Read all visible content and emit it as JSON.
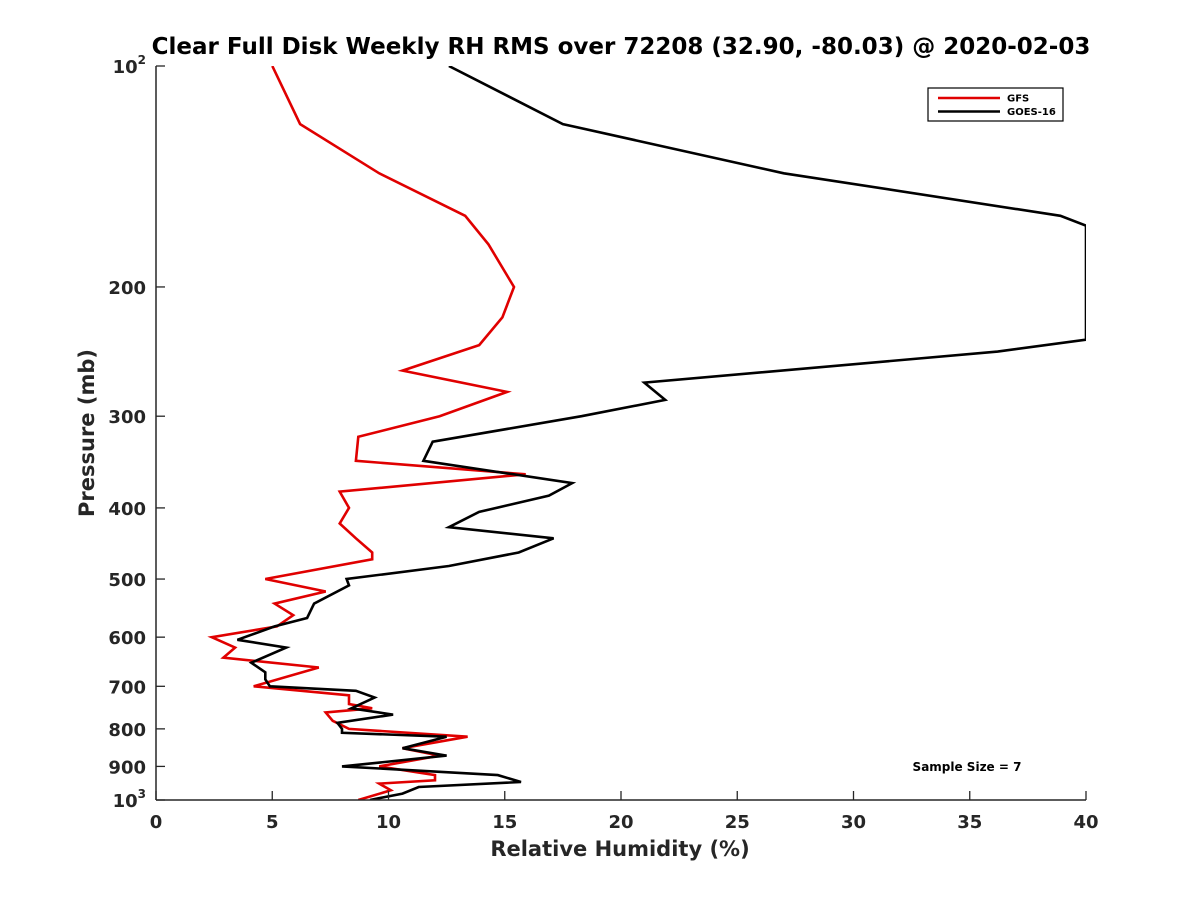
{
  "chart_data": {
    "type": "line",
    "title": "Clear Full Disk Weekly RH RMS over 72208 (32.90, -80.03) @ 2020-02-03",
    "xlabel": "Relative Humidity (%)",
    "ylabel": "Pressure (mb)",
    "xlim": [
      0,
      40
    ],
    "ylim": [
      100,
      1000
    ],
    "y_scale": "log",
    "y_reversed": true,
    "grid": false,
    "legend_position": "top-right",
    "x_ticks": [
      0,
      5,
      10,
      15,
      20,
      25,
      30,
      35,
      40
    ],
    "y_ticks": [
      {
        "value": 100,
        "base": "10",
        "exp": "2"
      },
      {
        "value": 200,
        "label": "200"
      },
      {
        "value": 300,
        "label": "300"
      },
      {
        "value": 400,
        "label": "400"
      },
      {
        "value": 500,
        "label": "500"
      },
      {
        "value": 600,
        "label": "600"
      },
      {
        "value": 700,
        "label": "700"
      },
      {
        "value": 800,
        "label": "800"
      },
      {
        "value": 900,
        "label": "900"
      },
      {
        "value": 1000,
        "base": "10",
        "exp": "3"
      }
    ],
    "annotation": "Sample Size = 7",
    "series": [
      {
        "name": "GFS",
        "color": "#e00000",
        "points": [
          [
            5.0,
            100
          ],
          [
            6.2,
            120
          ],
          [
            9.6,
            140
          ],
          [
            13.3,
            160
          ],
          [
            14.3,
            175
          ],
          [
            15.4,
            200
          ],
          [
            14.9,
            220
          ],
          [
            13.9,
            240
          ],
          [
            10.6,
            260
          ],
          [
            15.1,
            278
          ],
          [
            12.2,
            300
          ],
          [
            8.7,
            320
          ],
          [
            8.6,
            345
          ],
          [
            15.9,
            360
          ],
          [
            7.9,
            380
          ],
          [
            8.3,
            400
          ],
          [
            7.9,
            420
          ],
          [
            8.6,
            440
          ],
          [
            9.3,
            460
          ],
          [
            9.3,
            470
          ],
          [
            4.7,
            500
          ],
          [
            7.3,
            520
          ],
          [
            5.1,
            540
          ],
          [
            5.9,
            560
          ],
          [
            5.2,
            580
          ],
          [
            2.4,
            600
          ],
          [
            3.4,
            620
          ],
          [
            2.9,
            640
          ],
          [
            7.0,
            660
          ],
          [
            4.2,
            700
          ],
          [
            8.3,
            720
          ],
          [
            8.3,
            740
          ],
          [
            9.3,
            750
          ],
          [
            7.3,
            760
          ],
          [
            7.6,
            780
          ],
          [
            8.3,
            800
          ],
          [
            13.4,
            820
          ],
          [
            10.6,
            850
          ],
          [
            12.2,
            870
          ],
          [
            9.6,
            900
          ],
          [
            12.0,
            925
          ],
          [
            12.0,
            940
          ],
          [
            9.6,
            950
          ],
          [
            10.1,
            970
          ],
          [
            8.7,
            1000
          ]
        ]
      },
      {
        "name": "GOES-16",
        "color": "#000000",
        "points": [
          [
            12.6,
            100
          ],
          [
            17.5,
            120
          ],
          [
            27.0,
            140
          ],
          [
            38.9,
            160
          ],
          [
            40.0,
            165
          ],
          [
            40.0,
            236
          ],
          [
            36.2,
            245
          ],
          [
            21.0,
            270
          ],
          [
            21.9,
            285
          ],
          [
            18.3,
            300
          ],
          [
            11.9,
            325
          ],
          [
            11.5,
            345
          ],
          [
            17.9,
            370
          ],
          [
            16.9,
            385
          ],
          [
            13.9,
            405
          ],
          [
            12.6,
            425
          ],
          [
            17.1,
            440
          ],
          [
            15.6,
            460
          ],
          [
            12.6,
            480
          ],
          [
            8.2,
            500
          ],
          [
            8.3,
            510
          ],
          [
            6.8,
            540
          ],
          [
            6.5,
            565
          ],
          [
            5.1,
            580
          ],
          [
            3.5,
            605
          ],
          [
            5.6,
            620
          ],
          [
            4.1,
            650
          ],
          [
            4.7,
            670
          ],
          [
            4.7,
            685
          ],
          [
            4.9,
            700
          ],
          [
            8.6,
            710
          ],
          [
            9.4,
            725
          ],
          [
            8.4,
            750
          ],
          [
            10.2,
            765
          ],
          [
            7.8,
            785
          ],
          [
            8.0,
            800
          ],
          [
            8.0,
            810
          ],
          [
            12.5,
            820
          ],
          [
            10.6,
            850
          ],
          [
            12.5,
            870
          ],
          [
            8.0,
            900
          ],
          [
            14.7,
            925
          ],
          [
            15.7,
            945
          ],
          [
            11.3,
            960
          ],
          [
            10.6,
            980
          ],
          [
            9.2,
            1000
          ]
        ]
      }
    ]
  }
}
